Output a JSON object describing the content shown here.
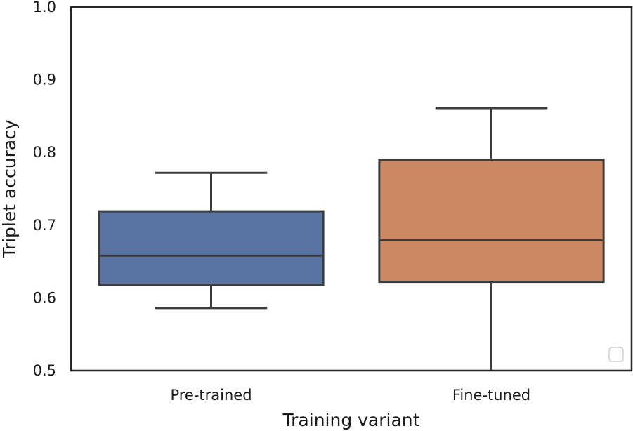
{
  "chart_data": {
    "type": "box",
    "title": "",
    "xlabel": "Training variant",
    "ylabel": "Triplet accuracy",
    "ylim": [
      0.5,
      1.0
    ],
    "yticks": [
      "0.5",
      "0.6",
      "0.7",
      "0.8",
      "0.9",
      "1.0"
    ],
    "grid": false,
    "categories": [
      "Pre-trained",
      "Fine-tuned"
    ],
    "boxes": [
      {
        "category": "Pre-trained",
        "whisker_low": 0.586,
        "q1": 0.618,
        "median": 0.658,
        "q3": 0.719,
        "whisker_high": 0.772,
        "color": "#5875a4"
      },
      {
        "category": "Fine-tuned",
        "whisker_low": 0.5,
        "q1": 0.622,
        "median": 0.679,
        "q3": 0.79,
        "whisker_high": 0.861,
        "color": "#cc8963"
      }
    ],
    "legend": {
      "placement": "lower right",
      "entries": []
    }
  }
}
